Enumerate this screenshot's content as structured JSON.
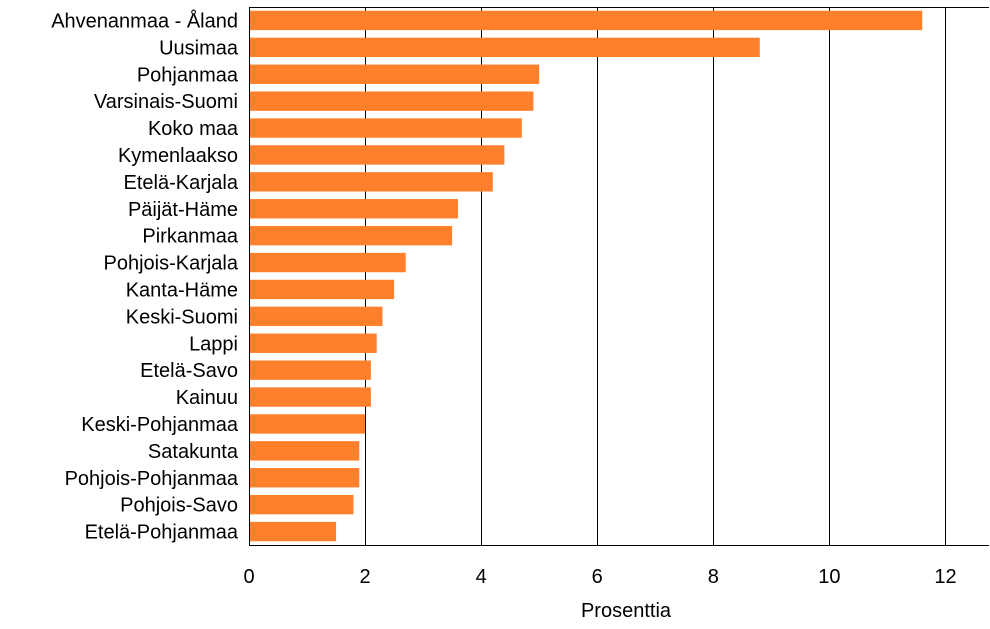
{
  "chart_data": {
    "type": "bar",
    "orientation": "horizontal",
    "categories": [
      "Ahvenanmaa - Åland",
      "Uusimaa",
      "Pohjanmaa",
      "Varsinais-Suomi",
      "Koko maa",
      "Kymenlaakso",
      "Etelä-Karjala",
      "Päijät-Häme",
      "Pirkanmaa",
      "Pohjois-Karjala",
      "Kanta-Häme",
      "Keski-Suomi",
      "Lappi",
      "Etelä-Savo",
      "Kainuu",
      "Keski-Pohjanmaa",
      "Satakunta",
      "Pohjois-Pohjanmaa",
      "Pohjois-Savo",
      "Etelä-Pohjanmaa"
    ],
    "values": [
      11.6,
      8.8,
      5.0,
      4.9,
      4.7,
      4.4,
      4.2,
      3.6,
      3.5,
      2.7,
      2.5,
      2.3,
      2.2,
      2.1,
      2.1,
      2.0,
      1.9,
      1.9,
      1.8,
      1.5
    ],
    "xlabel": "Prosenttia",
    "ylabel": "",
    "title": "",
    "xlim": [
      0,
      12.75
    ],
    "xticks": [
      0,
      2,
      4,
      6,
      8,
      10,
      12
    ],
    "grid": true,
    "bar_color": "#ff7f2a",
    "legend": false
  }
}
